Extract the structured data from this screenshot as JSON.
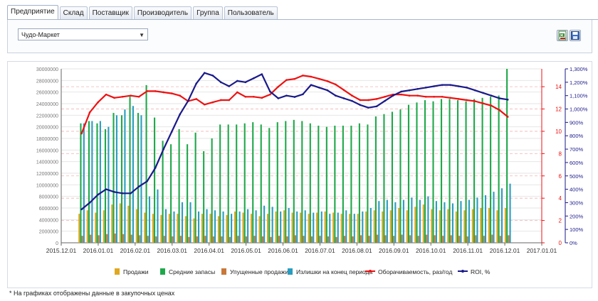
{
  "tabs": [
    {
      "label": "Предприятие",
      "active": true
    },
    {
      "label": "Склад",
      "active": false
    },
    {
      "label": "Поставщик",
      "active": false
    },
    {
      "label": "Производитель",
      "active": false
    },
    {
      "label": "Группа",
      "active": false
    },
    {
      "label": "Пользователь",
      "active": false
    }
  ],
  "filter": {
    "selected": "Чудо-Маркет"
  },
  "toolbar": {
    "export_icon": "excel-export-icon",
    "save_icon": "save-disk-icon"
  },
  "note": "* На графиках отображены данные в закупочных ценах",
  "colors": {
    "sales": "#e0a820",
    "avg_stock": "#1fa84a",
    "lost": "#c8783a",
    "excess": "#2a9cc0",
    "turnover": "#ee1111",
    "roi": "#1a1a8a"
  },
  "chart_data": {
    "type": "bar+line",
    "x_ticks": [
      "2015.12.01",
      "2016.01.01",
      "2016.02.01",
      "2016.03.01",
      "2016.04.01",
      "2016.05.01",
      "2016.06.01",
      "2016.07.01",
      "2016.08.01",
      "2016.09.01",
      "2016.10.01",
      "2016.11.01",
      "2016.12.01",
      "2017.01.01"
    ],
    "left_axis": {
      "ticks": [
        "0",
        "2000000",
        "4000000",
        "6000000",
        "8000000",
        "10000000",
        "12000000",
        "14000000",
        "16000000",
        "18000000",
        "20000000",
        "22000000",
        "24000000",
        "26000000",
        "28000000",
        "30000000"
      ],
      "max": 30000000
    },
    "right_axis_turnover": {
      "ticks": [
        "0",
        "2",
        "4",
        "6",
        "8",
        "10",
        "12",
        "14"
      ],
      "max": 15.6
    },
    "right_axis_roi": {
      "ticks": [
        "0%",
        "100%",
        "200%",
        "300%",
        "400%",
        "500%",
        "600%",
        "700%",
        "800%",
        "900%",
        "1,000%",
        "1,100%",
        "1,200%",
        "1,300%"
      ],
      "max": 1300
    },
    "weeks": 53,
    "series": [
      {
        "name": "Продажи",
        "kind": "bar",
        "values": [
          5000000,
          5600000,
          5200000,
          5600000,
          6600000,
          6800000,
          6400000,
          5800000,
          5200000,
          5000000,
          4800000,
          5000000,
          5000000,
          4600000,
          4200000,
          5000000,
          5000000,
          4600000,
          4800000,
          5400000,
          5200000,
          5000000,
          4600000,
          5000000,
          5400000,
          5600000,
          5200000,
          5200000,
          5000000,
          5200000,
          5400000,
          5200000,
          5000000,
          5000000,
          5000000,
          5400000,
          5600000,
          5400000,
          5600000,
          6000000,
          5600000,
          6200000,
          6600000,
          5800000,
          5600000,
          5800000,
          5400000,
          5600000,
          5800000,
          6000000,
          6000000,
          5600000,
          6000000
        ]
      },
      {
        "name": "Средние запасы",
        "kind": "bar",
        "values": [
          20600000,
          21000000,
          20600000,
          19600000,
          22400000,
          22000000,
          25200000,
          22400000,
          27200000,
          21600000,
          17600000,
          17000000,
          19600000,
          17000000,
          19000000,
          15800000,
          18000000,
          20400000,
          20400000,
          20400000,
          20600000,
          20800000,
          20400000,
          19800000,
          20800000,
          21000000,
          21200000,
          21000000,
          20600000,
          20200000,
          20000000,
          20200000,
          20200000,
          20200000,
          20600000,
          20400000,
          21800000,
          22200000,
          22600000,
          23000000,
          23800000,
          24200000,
          24600000,
          24400000,
          24800000,
          24800000,
          24600000,
          24400000,
          24800000,
          25000000,
          25200000,
          25400000,
          30000000
        ]
      },
      {
        "name": "Упущенные продажи",
        "kind": "bar",
        "values": [
          1200000,
          1400000,
          1300000,
          1500000,
          1600000,
          1500000,
          1400000,
          1300000,
          1200000,
          1100000,
          1200000,
          1100000,
          1200000,
          1000000,
          1100000,
          1200000,
          1100000,
          1100000,
          1000000,
          1200000,
          1100000,
          1200000,
          1100000,
          1000000,
          1200000,
          1100000,
          1300000,
          1200000,
          1100000,
          1200000,
          1100000,
          1000000,
          1200000,
          1100000,
          1300000,
          1200000,
          1400000,
          1300000,
          1200000,
          1400000,
          1300000,
          1200000,
          1400000,
          1300000,
          1200000,
          1300000,
          1200000,
          1100000,
          1300000,
          1200000,
          1400000,
          1200000,
          1300000
        ]
      },
      {
        "name": "Излишки на конец периода",
        "kind": "bar",
        "values": [
          20600000,
          21000000,
          21000000,
          20000000,
          22000000,
          23000000,
          23600000,
          22000000,
          8000000,
          9200000,
          5800000,
          5400000,
          7000000,
          7000000,
          5400000,
          5800000,
          5600000,
          5400000,
          5000000,
          5400000,
          5800000,
          5600000,
          6400000,
          6200000,
          5400000,
          6000000,
          5400000,
          5600000,
          5200000,
          5400000,
          5000000,
          5200000,
          5600000,
          5000000,
          5400000,
          6000000,
          7200000,
          7400000,
          7000000,
          7400000,
          7800000,
          7400000,
          8000000,
          7200000,
          7000000,
          6800000,
          7200000,
          7400000,
          7800000,
          8200000,
          8800000,
          9400000,
          10200000
        ]
      },
      {
        "name": "Оборачиваемость, раз/год",
        "kind": "line",
        "values": [
          9.8,
          11.7,
          12.6,
          13.3,
          13.0,
          13.1,
          13.2,
          13.1,
          13.6,
          13.6,
          13.5,
          13.4,
          13.2,
          12.7,
          12.9,
          12.4,
          12.6,
          12.8,
          12.8,
          13.5,
          13.1,
          13.1,
          13.0,
          13.3,
          14.0,
          14.6,
          14.7,
          15.0,
          14.9,
          14.7,
          14.5,
          14.2,
          13.7,
          13.2,
          12.8,
          12.8,
          12.9,
          13.1,
          13.3,
          13.3,
          13.2,
          13.2,
          13.1,
          13.1,
          13.1,
          13.0,
          12.9,
          12.8,
          12.7,
          12.5,
          12.3,
          11.9,
          11.3
        ]
      },
      {
        "name": "ROI, %",
        "kind": "line",
        "values": [
          250,
          300,
          360,
          400,
          380,
          370,
          370,
          420,
          460,
          560,
          700,
          830,
          960,
          1060,
          1190,
          1270,
          1250,
          1200,
          1170,
          1210,
          1200,
          1230,
          1260,
          1130,
          1080,
          1100,
          1090,
          1110,
          1180,
          1160,
          1140,
          1100,
          1080,
          1060,
          1030,
          1010,
          1020,
          1060,
          1100,
          1130,
          1140,
          1150,
          1160,
          1170,
          1180,
          1180,
          1170,
          1160,
          1140,
          1120,
          1100,
          1080,
          1070
        ]
      }
    ]
  }
}
